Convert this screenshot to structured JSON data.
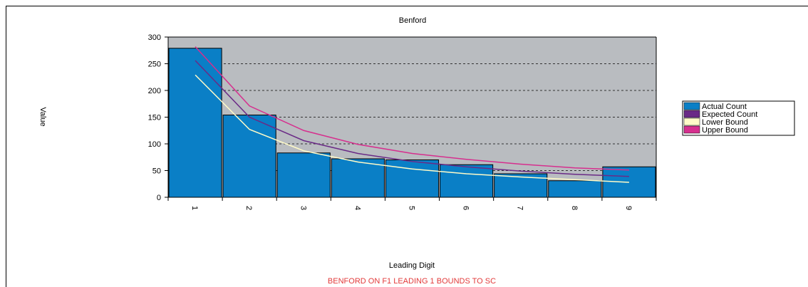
{
  "chart_data": {
    "type": "bar",
    "title": "Benford",
    "xlabel": "Leading Digit",
    "ylabel": "Value",
    "ylim": [
      0,
      300
    ],
    "yticks": [
      0,
      50,
      100,
      150,
      200,
      250,
      300
    ],
    "categories": [
      "1",
      "2",
      "3",
      "4",
      "5",
      "6",
      "7",
      "8",
      "9"
    ],
    "series": [
      {
        "name": "Actual Count",
        "kind": "bar",
        "color": "#0a7fc6",
        "values": [
          279,
          154,
          83,
          72,
          70,
          61,
          44,
          31,
          57
        ]
      },
      {
        "name": "Expected Count",
        "kind": "line",
        "color": "#6a2a86",
        "values": [
          256,
          150,
          106,
          82,
          67,
          57,
          49,
          43,
          39
        ]
      },
      {
        "name": "Lower Bound",
        "kind": "line",
        "color": "#fffbc8",
        "values": [
          229,
          127,
          87,
          66,
          53,
          44,
          38,
          33,
          28
        ]
      },
      {
        "name": "Upper Bound",
        "kind": "line",
        "color": "#d62f8e",
        "values": [
          282,
          171,
          125,
          99,
          82,
          71,
          62,
          55,
          51
        ]
      }
    ],
    "grid": true,
    "legend_position": "right",
    "plot_background": "#b9bcc0",
    "footnote": "BENFORD ON F1 LEADING 1 BOUNDS TO SC",
    "footnote_color": "#e23a3a"
  }
}
